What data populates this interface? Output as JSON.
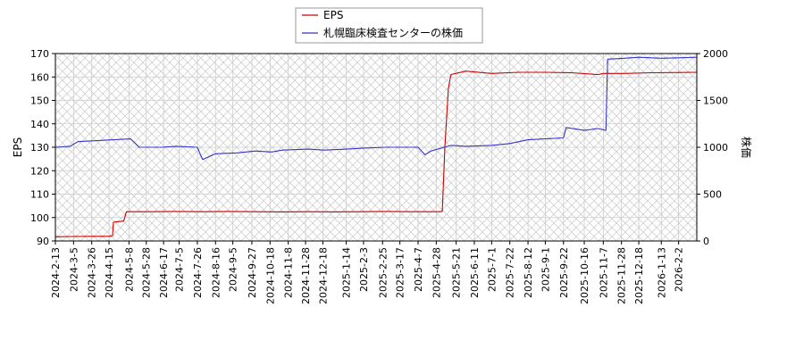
{
  "chart_data": {
    "type": "line",
    "title": "",
    "xlabel": "",
    "ylabel_left": "EPS",
    "ylabel_right": "株価",
    "ylim_left": [
      90,
      170
    ],
    "ylim_right": [
      0,
      2000
    ],
    "yticks_left": [
      90,
      100,
      110,
      120,
      130,
      140,
      150,
      160,
      170
    ],
    "yticks_right": [
      0,
      500,
      1000,
      1500,
      2000
    ],
    "x_range": [
      "2024-02-13",
      "2026-02-23"
    ],
    "x_ticks": [
      "2024-2-13",
      "2024-3-5",
      "2024-3-26",
      "2024-4-15",
      "2024-5-8",
      "2024-5-28",
      "2024-6-17",
      "2024-7-5",
      "2024-7-26",
      "2024-8-16",
      "2024-9-5",
      "2024-9-27",
      "2024-10-18",
      "2024-11-8",
      "2024-11-28",
      "2024-12-18",
      "2025-1-14",
      "2025-2-3",
      "2025-2-25",
      "2025-3-17",
      "2025-4-7",
      "2025-4-28",
      "2025-5-21",
      "2025-6-11",
      "2025-7-1",
      "2025-7-22",
      "2025-8-12",
      "2025-9-1",
      "2025-9-22",
      "2025-10-16",
      "2025-11-7",
      "2025-11-28",
      "2025-12-18",
      "2026-1-13",
      "2026-2-2"
    ],
    "grid": true,
    "legend_position": "top-center",
    "series": [
      {
        "name": "EPS",
        "color": "#cc0000",
        "axis": "left",
        "points": [
          [
            "2024-02-13",
            91.8
          ],
          [
            "2024-03-01",
            91.9
          ],
          [
            "2024-03-26",
            92.0
          ],
          [
            "2024-04-15",
            92.0
          ],
          [
            "2024-04-19",
            92.3
          ],
          [
            "2024-04-20",
            98.0
          ],
          [
            "2024-05-02",
            98.5
          ],
          [
            "2024-05-05",
            102.5
          ],
          [
            "2024-06-01",
            102.5
          ],
          [
            "2024-07-01",
            102.6
          ],
          [
            "2024-08-01",
            102.5
          ],
          [
            "2024-09-01",
            102.6
          ],
          [
            "2024-10-01",
            102.5
          ],
          [
            "2024-11-01",
            102.4
          ],
          [
            "2024-12-01",
            102.5
          ],
          [
            "2025-01-01",
            102.4
          ],
          [
            "2025-02-01",
            102.5
          ],
          [
            "2025-03-01",
            102.6
          ],
          [
            "2025-04-01",
            102.5
          ],
          [
            "2025-05-01",
            102.5
          ],
          [
            "2025-05-05",
            102.6
          ],
          [
            "2025-05-08",
            130.0
          ],
          [
            "2025-05-12",
            155.0
          ],
          [
            "2025-05-15",
            161.0
          ],
          [
            "2025-06-01",
            162.5
          ],
          [
            "2025-07-01",
            161.5
          ],
          [
            "2025-08-01",
            162.0
          ],
          [
            "2025-09-01",
            162.0
          ],
          [
            "2025-10-01",
            161.8
          ],
          [
            "2025-11-01",
            161.0
          ],
          [
            "2025-11-07",
            161.5
          ],
          [
            "2025-12-01",
            161.5
          ],
          [
            "2026-01-01",
            161.8
          ],
          [
            "2026-02-23",
            162.0
          ]
        ]
      },
      {
        "name": "札幌臨床検査センターの株価",
        "color": "#3333cc",
        "axis": "right",
        "points": [
          [
            "2024-02-13",
            1000
          ],
          [
            "2024-03-01",
            1010
          ],
          [
            "2024-03-10",
            1060
          ],
          [
            "2024-04-01",
            1070
          ],
          [
            "2024-04-20",
            1080
          ],
          [
            "2024-05-10",
            1090
          ],
          [
            "2024-05-20",
            1000
          ],
          [
            "2024-06-15",
            1000
          ],
          [
            "2024-07-01",
            1010
          ],
          [
            "2024-07-26",
            1000
          ],
          [
            "2024-08-01",
            870
          ],
          [
            "2024-08-16",
            930
          ],
          [
            "2024-09-10",
            940
          ],
          [
            "2024-10-01",
            960
          ],
          [
            "2024-10-20",
            950
          ],
          [
            "2024-11-01",
            970
          ],
          [
            "2024-12-01",
            980
          ],
          [
            "2024-12-20",
            970
          ],
          [
            "2025-01-14",
            980
          ],
          [
            "2025-02-01",
            990
          ],
          [
            "2025-03-01",
            1000
          ],
          [
            "2025-04-07",
            1000
          ],
          [
            "2025-04-15",
            920
          ],
          [
            "2025-04-22",
            960
          ],
          [
            "2025-05-15",
            1020
          ],
          [
            "2025-06-01",
            1010
          ],
          [
            "2025-07-01",
            1020
          ],
          [
            "2025-07-22",
            1040
          ],
          [
            "2025-08-12",
            1080
          ],
          [
            "2025-09-01",
            1090
          ],
          [
            "2025-09-22",
            1100
          ],
          [
            "2025-09-25",
            1210
          ],
          [
            "2025-10-16",
            1180
          ],
          [
            "2025-11-01",
            1200
          ],
          [
            "2025-11-10",
            1180
          ],
          [
            "2025-11-12",
            1940
          ],
          [
            "2025-12-01",
            1950
          ],
          [
            "2025-12-18",
            1960
          ],
          [
            "2026-01-13",
            1950
          ],
          [
            "2026-02-23",
            1960
          ]
        ]
      }
    ]
  }
}
